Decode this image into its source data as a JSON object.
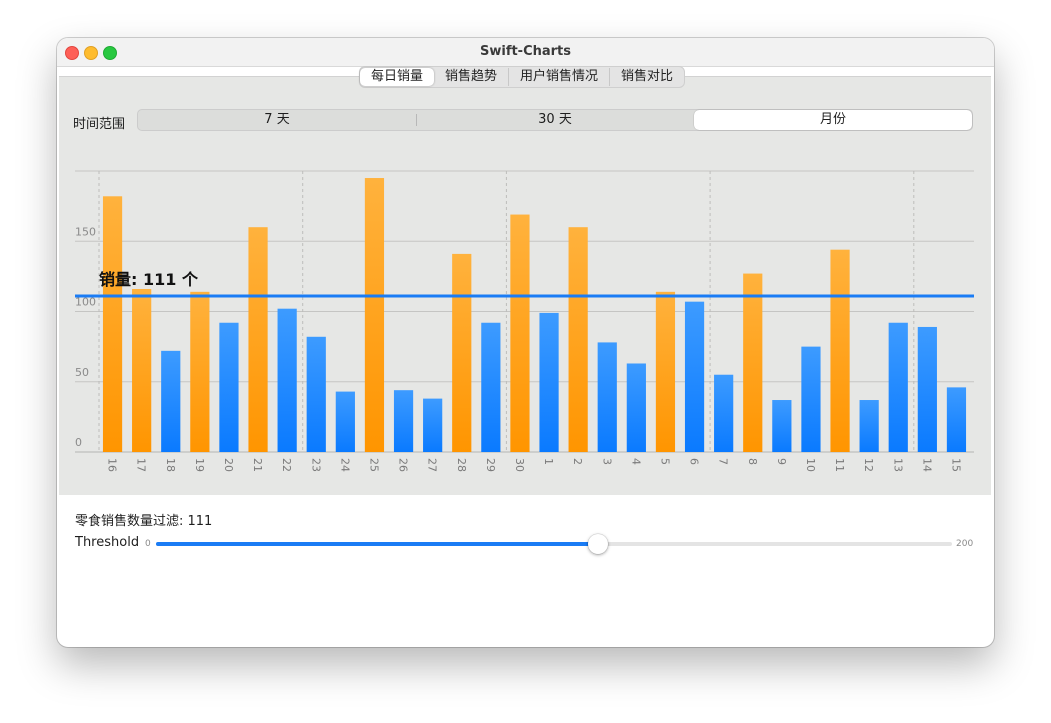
{
  "window": {
    "title": "Swift-Charts"
  },
  "tabs": [
    {
      "label": "每日销量",
      "active": true
    },
    {
      "label": "销售趋势",
      "active": false
    },
    {
      "label": "用户销售情况",
      "active": false
    },
    {
      "label": "销售对比",
      "active": false
    }
  ],
  "time_range": {
    "label": "时间范围",
    "options": [
      {
        "label": "7 天",
        "active": false
      },
      {
        "label": "30 天",
        "active": false
      },
      {
        "label": "月份",
        "active": true
      }
    ]
  },
  "chart_data": {
    "type": "bar",
    "categories": [
      "16",
      "17",
      "18",
      "19",
      "20",
      "21",
      "22",
      "23",
      "24",
      "25",
      "26",
      "27",
      "28",
      "29",
      "30",
      "1",
      "2",
      "3",
      "4",
      "5",
      "6",
      "7",
      "8",
      "9",
      "10",
      "11",
      "12",
      "13",
      "14",
      "15"
    ],
    "values": [
      182,
      116,
      72,
      114,
      92,
      160,
      102,
      82,
      43,
      195,
      44,
      38,
      141,
      92,
      169,
      99,
      160,
      78,
      63,
      114,
      107,
      55,
      127,
      37,
      75,
      144,
      37,
      92,
      89,
      46
    ],
    "ylim": [
      0,
      200
    ],
    "yticks": [
      0,
      50,
      100,
      150
    ],
    "grid": true,
    "threshold": {
      "value": 111,
      "label": "销量: 111 个"
    },
    "colors": {
      "above": "#ff9500",
      "below": "#0a7aff",
      "rule": "#1a7cf5"
    }
  },
  "filter": {
    "label": "零食销售数量过滤: 111"
  },
  "slider": {
    "label": "Threshold",
    "min_label": "0",
    "max_label": "200",
    "min": 0,
    "max": 200,
    "value": 111
  }
}
